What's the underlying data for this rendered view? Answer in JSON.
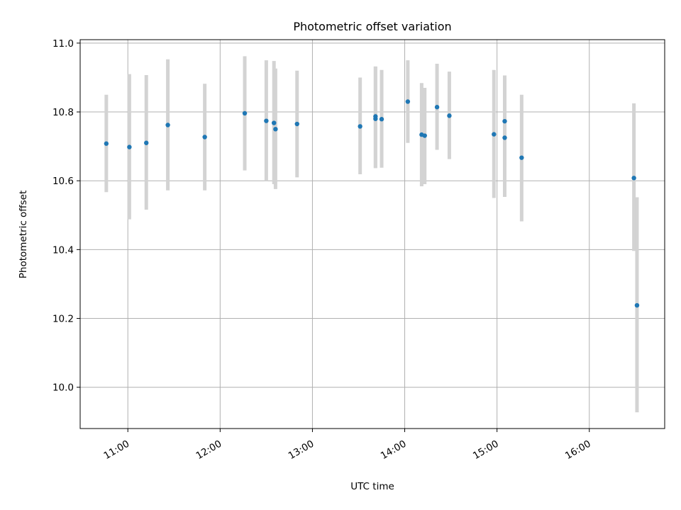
{
  "chart_data": {
    "type": "scatter",
    "title": "Photometric offset variation",
    "xlabel": "UTC time",
    "ylabel": "Photometric offset",
    "grid": true,
    "xlim": [
      "10:29",
      "16:49"
    ],
    "ylim": [
      9.88,
      11.01
    ],
    "x_ticks": [
      "11:00",
      "12:00",
      "13:00",
      "14:00",
      "15:00",
      "16:00"
    ],
    "y_ticks": [
      10.0,
      10.2,
      10.4,
      10.6,
      10.8,
      11.0
    ],
    "y_tick_labels": [
      "10.0",
      "10.2",
      "10.4",
      "10.6",
      "10.8",
      "11.0"
    ],
    "marker_color": "#1f77b4",
    "errorbar_color": "#d3d3d3",
    "series": [
      {
        "x": [
          "10:46",
          "11:01",
          "11:12",
          "11:26",
          "11:50",
          "12:16",
          "12:30",
          "12:35",
          "12:36",
          "12:50",
          "13:31",
          "13:41",
          "13:41",
          "13:45",
          "14:02",
          "14:11",
          "14:13",
          "14:21",
          "14:29",
          "14:58",
          "15:05",
          "15:05",
          "15:16",
          "16:29",
          "16:31"
        ],
        "y": [
          10.708,
          10.698,
          10.71,
          10.762,
          10.727,
          10.796,
          10.774,
          10.768,
          10.75,
          10.765,
          10.758,
          10.787,
          10.78,
          10.779,
          10.83,
          10.734,
          10.731,
          10.814,
          10.789,
          10.735,
          10.773,
          10.725,
          10.667,
          10.608,
          10.238
        ],
        "y_low": [
          10.567,
          10.488,
          10.516,
          10.572,
          10.572,
          10.63,
          10.6,
          10.59,
          10.576,
          10.61,
          10.619,
          10.637,
          10.637,
          10.638,
          10.71,
          10.584,
          10.59,
          10.69,
          10.663,
          10.55,
          10.64,
          10.553,
          10.482,
          10.396,
          9.927
        ],
        "y_high": [
          10.85,
          10.91,
          10.907,
          10.953,
          10.882,
          10.962,
          10.95,
          10.948,
          10.926,
          10.92,
          10.9,
          10.932,
          10.932,
          10.922,
          10.95,
          10.884,
          10.87,
          10.94,
          10.917,
          10.922,
          10.906,
          10.898,
          10.85,
          10.825,
          10.552
        ]
      }
    ]
  }
}
